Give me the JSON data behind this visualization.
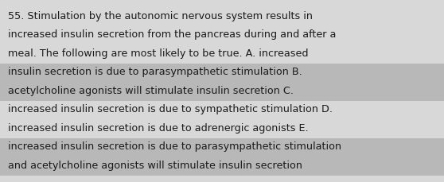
{
  "lines": [
    "55. Stimulation by the autonomic nervous system results in",
    "increased insulin secretion from the pancreas during and after a",
    "meal. The following are most likely to be true. A. increased",
    "insulin secretion is due to parasympathetic stimulation B.",
    "acetylcholine agonists will stimulate insulin secretion C.",
    "increased insulin secretion is due to sympathetic stimulation D.",
    "increased insulin secretion is due to adrenergic agonists E.",
    "increased insulin secretion is due to parasympathetic stimulation",
    "and acetylcholine agonists will stimulate insulin secretion"
  ],
  "bg_color": "#d8d8d8",
  "stripe_color": "#b8b8b8",
  "text_color": "#1a1a1a",
  "font_size": 9.2,
  "stripe_lines": [
    3,
    4,
    7,
    8
  ]
}
